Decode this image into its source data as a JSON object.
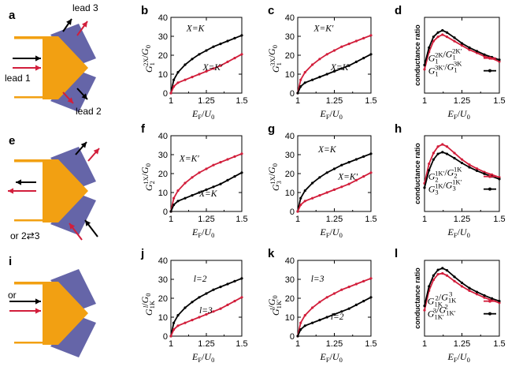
{
  "colors": {
    "device": "#F2A012",
    "lead": "#6565A8",
    "red": "#D21E3B",
    "black": "#000000"
  },
  "schematics": {
    "a": {
      "letter": "a",
      "lead1": "lead 1",
      "lead2": "lead 2",
      "lead3": "lead 3"
    },
    "e": {
      "letter": "e",
      "note": "or 2⇄3"
    },
    "i": {
      "letter": "i",
      "or": "or"
    }
  },
  "chart_data": [
    {
      "panel": "b",
      "type": "line",
      "ylabel": "G_1^{2X}/G_0",
      "xlabel": "E_F/U_0",
      "xlim": [
        1.0,
        1.5
      ],
      "ylim": [
        0,
        40
      ],
      "xticks": [
        "1",
        "1.25",
        "1.5"
      ],
      "yticks": [
        "0",
        "10",
        "20",
        "30",
        "40"
      ],
      "series": [
        {
          "name": "X=K",
          "color": "black",
          "x": [
            1.0,
            1.02,
            1.05,
            1.1,
            1.15,
            1.2,
            1.25,
            1.3,
            1.35,
            1.4,
            1.45,
            1.5
          ],
          "y": [
            0,
            7,
            11,
            15,
            18,
            20.5,
            22.5,
            24.5,
            26,
            27.5,
            29,
            30.5
          ]
        },
        {
          "name": "X=K′",
          "color": "red",
          "x": [
            1.0,
            1.02,
            1.05,
            1.1,
            1.15,
            1.2,
            1.25,
            1.3,
            1.35,
            1.4,
            1.45,
            1.5
          ],
          "y": [
            0,
            3.5,
            5.5,
            7,
            8.5,
            10,
            11.5,
            13,
            14.5,
            16.5,
            18.5,
            20.5
          ]
        }
      ],
      "annotations": [
        {
          "text": "X=K"
        },
        {
          "text": "X=K′"
        }
      ]
    },
    {
      "panel": "c",
      "type": "line",
      "ylabel": "G_1^{3X}/G_0",
      "xlabel": "E_F/U_0",
      "xlim": [
        1.0,
        1.5
      ],
      "ylim": [
        0,
        40
      ],
      "xticks": [
        "1",
        "1.25",
        "1.5"
      ],
      "yticks": [
        "0",
        "10",
        "20",
        "30",
        "40"
      ],
      "series": [
        {
          "name": "X=K′",
          "color": "red",
          "x": [
            1.0,
            1.02,
            1.05,
            1.1,
            1.15,
            1.2,
            1.25,
            1.3,
            1.35,
            1.4,
            1.45,
            1.5
          ],
          "y": [
            0,
            7,
            11,
            15,
            18,
            20.5,
            22.5,
            24.5,
            26,
            27.5,
            29,
            30.5
          ]
        },
        {
          "name": "X=K",
          "color": "black",
          "x": [
            1.0,
            1.02,
            1.05,
            1.1,
            1.15,
            1.2,
            1.25,
            1.3,
            1.35,
            1.4,
            1.45,
            1.5
          ],
          "y": [
            0,
            3.5,
            5.5,
            7,
            8.5,
            10,
            11.5,
            13,
            14.5,
            16.5,
            18.5,
            20.5
          ]
        }
      ],
      "annotations": [
        {
          "text": "X=K′"
        },
        {
          "text": "X=K"
        }
      ]
    },
    {
      "panel": "d",
      "type": "line",
      "ylabel": "conductance ratio",
      "xlabel": "E_F/U_0",
      "xlim": [
        1.0,
        1.5
      ],
      "ylim": [
        0.75,
        2.5
      ],
      "xticks": [
        "1",
        "1.25",
        "1.5"
      ],
      "yticks": [],
      "series": [
        {
          "name": "G_1^{2K}/G_1^{2K′}",
          "color": "red",
          "x": [
            1.0,
            1.03,
            1.06,
            1.09,
            1.12,
            1.15,
            1.2,
            1.25,
            1.3,
            1.35,
            1.4,
            1.45,
            1.5
          ],
          "y": [
            1.3,
            1.7,
            1.95,
            2.05,
            2.1,
            2.05,
            1.95,
            1.85,
            1.75,
            1.68,
            1.6,
            1.55,
            1.48
          ]
        },
        {
          "name": "G_1^{3K′}/G_1^{3K}",
          "color": "black",
          "x": [
            1.0,
            1.03,
            1.06,
            1.09,
            1.12,
            1.15,
            1.2,
            1.25,
            1.3,
            1.35,
            1.4,
            1.45,
            1.5
          ],
          "y": [
            1.4,
            1.8,
            2.05,
            2.15,
            2.2,
            2.15,
            2.03,
            1.9,
            1.8,
            1.72,
            1.64,
            1.58,
            1.52
          ]
        }
      ]
    },
    {
      "panel": "f",
      "type": "line",
      "ylabel": "G_2^{1X}/G_0",
      "xlabel": "E_F/U_0",
      "xlim": [
        1.0,
        1.5
      ],
      "ylim": [
        0,
        40
      ],
      "xticks": [
        "1",
        "1.25",
        "1.5"
      ],
      "yticks": [
        "0",
        "10",
        "20",
        "30",
        "40"
      ],
      "series": [
        {
          "name": "X=K′",
          "color": "red",
          "x": [
            1.0,
            1.02,
            1.05,
            1.1,
            1.15,
            1.2,
            1.25,
            1.3,
            1.35,
            1.4,
            1.45,
            1.5
          ],
          "y": [
            0,
            7,
            11,
            15,
            18,
            20.5,
            22.5,
            24.5,
            26,
            27.5,
            29,
            30.5
          ]
        },
        {
          "name": "X=K",
          "color": "black",
          "x": [
            1.0,
            1.02,
            1.05,
            1.1,
            1.15,
            1.2,
            1.25,
            1.3,
            1.35,
            1.4,
            1.45,
            1.5
          ],
          "y": [
            0,
            3.5,
            5.5,
            7,
            8.5,
            10,
            11.5,
            13,
            14.5,
            16.5,
            18.5,
            20.5
          ]
        }
      ],
      "annotations": [
        {
          "text": "X=K′"
        },
        {
          "text": "X=K"
        }
      ]
    },
    {
      "panel": "g",
      "type": "line",
      "ylabel": "G_3^{1X}/G_0",
      "xlabel": "E_F/U_0",
      "xlim": [
        1.0,
        1.5
      ],
      "ylim": [
        0,
        40
      ],
      "xticks": [
        "1",
        "1.25",
        "1.5"
      ],
      "yticks": [
        "0",
        "10",
        "20",
        "30",
        "40"
      ],
      "series": [
        {
          "name": "X=K",
          "color": "black",
          "x": [
            1.0,
            1.02,
            1.05,
            1.1,
            1.15,
            1.2,
            1.25,
            1.3,
            1.35,
            1.4,
            1.45,
            1.5
          ],
          "y": [
            0,
            7,
            11,
            15,
            18,
            20.5,
            22.5,
            24.5,
            26,
            27.5,
            29,
            30.5
          ]
        },
        {
          "name": "X=K′",
          "color": "red",
          "x": [
            1.0,
            1.02,
            1.05,
            1.1,
            1.15,
            1.2,
            1.25,
            1.3,
            1.35,
            1.4,
            1.45,
            1.5
          ],
          "y": [
            0,
            3.5,
            5.5,
            7,
            8.5,
            10,
            11.5,
            13,
            14.5,
            16.5,
            18.5,
            20.5
          ]
        }
      ],
      "annotations": [
        {
          "text": "X=K"
        },
        {
          "text": "X=K′"
        }
      ]
    },
    {
      "panel": "h",
      "type": "line",
      "ylabel": "conductance ratio",
      "xlabel": "E_F/U_0",
      "xlim": [
        1.0,
        1.5
      ],
      "ylim": [
        0.75,
        2.5
      ],
      "xticks": [
        "1",
        "1.25",
        "1.5"
      ],
      "yticks": [],
      "series": [
        {
          "name": "G_2^{1K′}/G_2^{1K}",
          "color": "red",
          "x": [
            1.0,
            1.03,
            1.06,
            1.09,
            1.12,
            1.15,
            1.2,
            1.25,
            1.3,
            1.35,
            1.4,
            1.45,
            1.5
          ],
          "y": [
            1.4,
            1.85,
            2.1,
            2.25,
            2.3,
            2.25,
            2.1,
            1.95,
            1.83,
            1.74,
            1.66,
            1.6,
            1.54
          ]
        },
        {
          "name": "G_3^{1K}/G_3^{1K′}",
          "color": "black",
          "x": [
            1.0,
            1.03,
            1.06,
            1.09,
            1.12,
            1.15,
            1.2,
            1.25,
            1.3,
            1.35,
            1.4,
            1.45,
            1.5
          ],
          "y": [
            1.3,
            1.7,
            1.95,
            2.08,
            2.12,
            2.08,
            1.98,
            1.87,
            1.77,
            1.69,
            1.62,
            1.56,
            1.5
          ]
        }
      ]
    },
    {
      "panel": "j",
      "type": "line",
      "ylabel": "G_{1K}^{l}/G_0",
      "xlabel": "E_F/U_0",
      "xlim": [
        1.0,
        1.5
      ],
      "ylim": [
        0,
        40
      ],
      "xticks": [
        "1",
        "1.25",
        "1.5"
      ],
      "yticks": [
        "0",
        "10",
        "20",
        "30",
        "40"
      ],
      "series": [
        {
          "name": "l=2",
          "color": "black",
          "x": [
            1.0,
            1.02,
            1.05,
            1.1,
            1.15,
            1.2,
            1.25,
            1.3,
            1.35,
            1.4,
            1.45,
            1.5
          ],
          "y": [
            0,
            7,
            11,
            15,
            18,
            20.5,
            22.5,
            24.5,
            26,
            27.5,
            29,
            30.5
          ]
        },
        {
          "name": "l=3",
          "color": "red",
          "x": [
            1.0,
            1.02,
            1.05,
            1.1,
            1.15,
            1.2,
            1.25,
            1.3,
            1.35,
            1.4,
            1.45,
            1.5
          ],
          "y": [
            0,
            3.5,
            5.5,
            7,
            8.5,
            10,
            11.5,
            13,
            14.5,
            16.5,
            18.5,
            20.5
          ]
        }
      ],
      "annotations": [
        {
          "text": "l=2"
        },
        {
          "text": "l=3"
        }
      ]
    },
    {
      "panel": "k",
      "type": "line",
      "ylabel": "G_{1K′}^{l}/G_0",
      "xlabel": "E_F/U_0",
      "xlim": [
        1.0,
        1.5
      ],
      "ylim": [
        0,
        40
      ],
      "xticks": [
        "1",
        "1.25",
        "1.5"
      ],
      "yticks": [
        "0",
        "10",
        "20",
        "30",
        "40"
      ],
      "series": [
        {
          "name": "l=3",
          "color": "red",
          "x": [
            1.0,
            1.02,
            1.05,
            1.1,
            1.15,
            1.2,
            1.25,
            1.3,
            1.35,
            1.4,
            1.45,
            1.5
          ],
          "y": [
            0,
            7,
            11,
            15,
            18,
            20.5,
            22.5,
            24.5,
            26,
            27.5,
            29,
            30.5
          ]
        },
        {
          "name": "l=2",
          "color": "black",
          "x": [
            1.0,
            1.02,
            1.05,
            1.1,
            1.15,
            1.2,
            1.25,
            1.3,
            1.35,
            1.4,
            1.45,
            1.5
          ],
          "y": [
            0,
            3.5,
            5.5,
            7,
            8.5,
            10,
            11.5,
            13,
            14.5,
            16.5,
            18.5,
            20.5
          ]
        }
      ],
      "annotations": [
        {
          "text": "l=3"
        },
        {
          "text": "l=2"
        }
      ]
    },
    {
      "panel": "l",
      "type": "line",
      "ylabel": "conductance ratio",
      "xlabel": "E_F/U_0",
      "xlim": [
        1.0,
        1.5
      ],
      "ylim": [
        0.75,
        2.5
      ],
      "xticks": [
        "1",
        "1.25",
        "1.5"
      ],
      "yticks": [],
      "series": [
        {
          "name": "G_{1K}^{2}/G_{1K}^{3}",
          "color": "red",
          "x": [
            1.0,
            1.03,
            1.06,
            1.09,
            1.12,
            1.15,
            1.2,
            1.25,
            1.3,
            1.35,
            1.4,
            1.45,
            1.5
          ],
          "y": [
            1.35,
            1.8,
            2.05,
            2.18,
            2.2,
            2.15,
            2.02,
            1.9,
            1.8,
            1.72,
            1.64,
            1.58,
            1.52
          ]
        },
        {
          "name": "G_{1K′}^{3}/G_{1K′}^{2}",
          "color": "black",
          "x": [
            1.0,
            1.03,
            1.06,
            1.09,
            1.12,
            1.15,
            1.2,
            1.25,
            1.3,
            1.35,
            1.4,
            1.45,
            1.5
          ],
          "y": [
            1.45,
            1.9,
            2.15,
            2.28,
            2.32,
            2.27,
            2.12,
            1.98,
            1.86,
            1.77,
            1.69,
            1.62,
            1.56
          ]
        }
      ]
    }
  ]
}
